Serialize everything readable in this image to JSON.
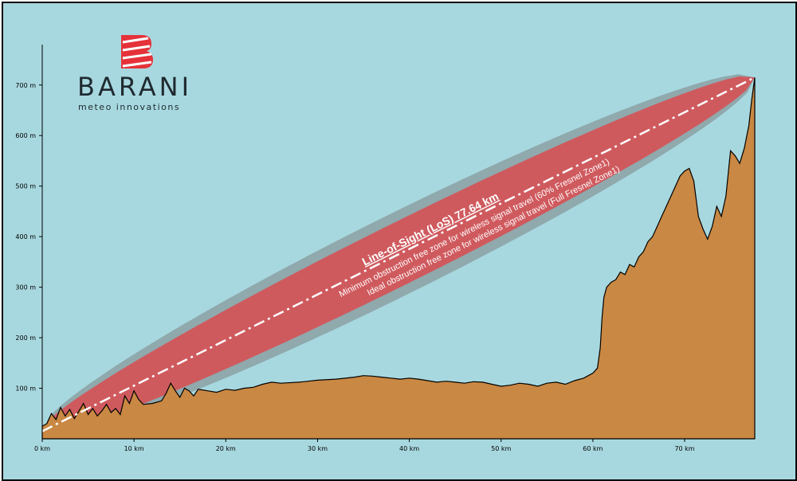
{
  "logo": {
    "brand": "BARANI",
    "tagline": "meteo innovations",
    "colors": {
      "icon": "#e5323a",
      "text": "#1f2a30"
    }
  },
  "annotations": {
    "los": "Line-of-Sight (LoS) 77.64 km",
    "fresnel60": "Minimum obstruction free zone for wireless signal travel (60% Fresnel Zone1)",
    "fresnelFull": "Ideal obstruction free zone for wireless signal travel (Full Fresnel Zone1)"
  },
  "colors": {
    "background": "#a8d8df",
    "terrain": "#c98843",
    "fresnel_full": "#8fa9ad",
    "fresnel_60": "#cf5a5e",
    "los_line": "#ffffff"
  },
  "chart_data": {
    "type": "area",
    "x_unit": "km",
    "y_unit": "m",
    "xlim": [
      0,
      77.64
    ],
    "ylim": [
      0,
      780
    ],
    "xticks": [
      0,
      10,
      20,
      30,
      40,
      50,
      60,
      70
    ],
    "xtick_labels": [
      "0 km",
      "10 km",
      "20 km",
      "30 km",
      "40 km",
      "50 km",
      "60 km",
      "70 km"
    ],
    "yticks": [
      100,
      200,
      300,
      400,
      500,
      600,
      700
    ],
    "ytick_labels": [
      "100 m",
      "200 m",
      "300 m",
      "400 m",
      "500 m",
      "600 m",
      "700 m"
    ],
    "grid": false,
    "line_of_sight": {
      "from": [
        0,
        15
      ],
      "to": [
        77.64,
        715
      ],
      "length_km": 77.64
    },
    "series": [
      {
        "type": "area",
        "x": [
          0,
          0.5,
          1,
          1.5,
          2,
          2.5,
          3,
          3.5,
          4,
          4.5,
          5,
          5.5,
          6,
          6.5,
          7,
          7.5,
          8,
          8.5,
          9,
          9.5,
          10,
          10.5,
          11,
          12,
          13,
          13.5,
          14,
          14.5,
          15,
          15.5,
          16,
          16.5,
          17,
          18,
          19,
          20,
          21,
          22,
          23,
          24,
          25,
          26,
          28,
          30,
          32,
          34,
          35,
          36,
          37,
          38,
          39,
          40,
          41,
          42,
          43,
          44,
          45,
          46,
          47,
          48,
          49,
          50,
          51,
          52,
          53,
          54,
          55,
          56,
          57,
          58,
          59,
          59.5,
          60,
          60.5,
          60.8,
          61,
          61.2,
          61.5,
          62,
          62.5,
          63,
          63.5,
          64,
          64.5,
          65,
          65.5,
          66,
          66.5,
          67,
          67.5,
          68,
          68.5,
          69,
          69.5,
          70,
          70.5,
          71,
          71.5,
          72,
          72.5,
          73,
          73.5,
          74,
          74.5,
          75,
          75.5,
          76,
          76.5,
          77,
          77.3,
          77.64
        ],
        "y": [
          25,
          30,
          50,
          38,
          62,
          45,
          58,
          40,
          55,
          70,
          48,
          60,
          45,
          55,
          68,
          52,
          60,
          48,
          85,
          70,
          95,
          78,
          68,
          70,
          75,
          90,
          110,
          95,
          82,
          100,
          95,
          85,
          98,
          95,
          92,
          98,
          96,
          100,
          102,
          108,
          112,
          110,
          112,
          116,
          118,
          122,
          125,
          124,
          122,
          120,
          118,
          120,
          118,
          115,
          112,
          114,
          112,
          110,
          113,
          112,
          108,
          104,
          106,
          110,
          108,
          104,
          110,
          112,
          108,
          115,
          120,
          125,
          130,
          140,
          180,
          240,
          280,
          300,
          310,
          315,
          330,
          325,
          345,
          340,
          360,
          370,
          390,
          400,
          420,
          440,
          460,
          480,
          500,
          520,
          530,
          535,
          510,
          440,
          415,
          395,
          420,
          460,
          440,
          480,
          570,
          560,
          545,
          575,
          620,
          670,
          715
        ]
      }
    ]
  }
}
